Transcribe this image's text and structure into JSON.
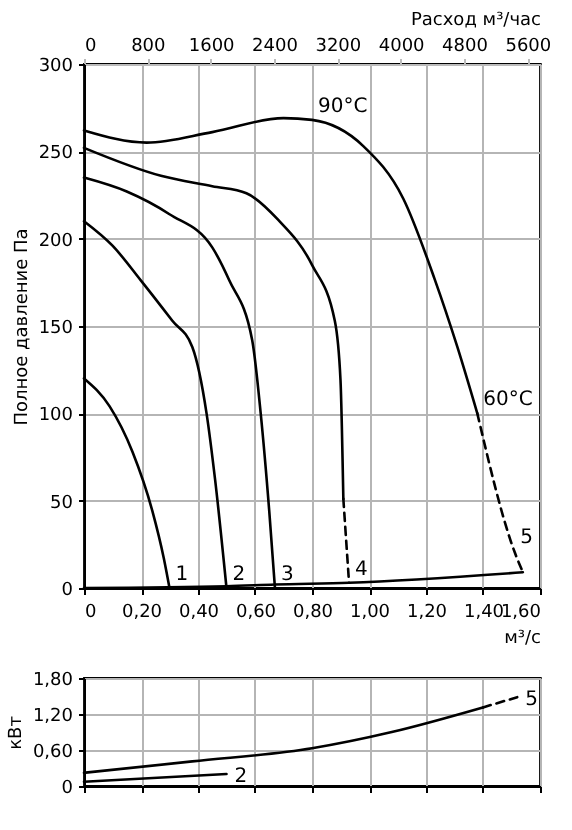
{
  "chart_data": [
    {
      "type": "line",
      "xlabel": "м³/с",
      "ylabel": "Полное давление Па",
      "x2label": "Расход м³/час",
      "xlim": [
        0,
        1.6
      ],
      "ylim": [
        0,
        300
      ],
      "x2lim": [
        0,
        5760
      ],
      "xticks": [
        0,
        {
          "value": 0.2,
          "label": "0,20"
        },
        {
          "value": 0.4,
          "label": "0,40"
        },
        {
          "value": 0.6,
          "label": "0,60"
        },
        {
          "value": 0.8,
          "label": "0,80"
        },
        {
          "value": 1.0,
          "label": "1,00"
        },
        {
          "value": 1.2,
          "label": "1,20"
        },
        {
          "value": 1.4,
          "label": "1,40"
        },
        {
          "value": 1.6,
          "label": "1,60"
        }
      ],
      "yticks": [
        0,
        50,
        100,
        150,
        200,
        250,
        300
      ],
      "x2ticks": [
        0,
        800,
        1600,
        2400,
        3200,
        4000,
        4800,
        5600
      ],
      "grid": true,
      "series": [
        {
          "color": "#000000",
          "line_style": "solid",
          "x": [
            0,
            0.09,
            0.17,
            0.24,
            0.28,
            0.3
          ],
          "values": [
            120,
            104,
            78,
            44,
            17,
            0
          ]
        },
        {
          "color": "#000000",
          "line_style": "solid",
          "x": [
            0,
            0.1,
            0.2,
            0.31,
            0.38,
            0.43,
            0.46,
            0.5
          ],
          "values": [
            210,
            196,
            176,
            153,
            138,
            100,
            62,
            0
          ]
        },
        {
          "color": "#000000",
          "line_style": "solid",
          "x": [
            0,
            0.15,
            0.3,
            0.45,
            0.51,
            0.59,
            0.62,
            0.65,
            0.67
          ],
          "values": [
            235,
            227,
            214,
            195,
            176,
            142,
            100,
            44,
            0
          ]
        },
        {
          "color": "#000000",
          "line_style": "solid",
          "x": [
            0,
            0.27,
            0.45,
            0.57,
            0.68,
            0.8,
            0.88,
            0.9,
            0.91
          ],
          "values": [
            252,
            236,
            230,
            226,
            211,
            185,
            153,
            119,
            51
          ]
        },
        {
          "color": "#000000",
          "line_style": "dashed",
          "x": [
            0.91,
            0.93
          ],
          "values": [
            51,
            3
          ]
        },
        {
          "color": "#000000",
          "line_style": "solid",
          "x": [
            0,
            0.22,
            0.45,
            0.7,
            0.8,
            0.98,
            1.12,
            1.23,
            1.31,
            1.38
          ],
          "values": [
            262,
            255,
            261,
            269,
            268,
            253,
            223,
            177,
            138,
            100
          ]
        },
        {
          "color": "#000000",
          "line_style": "dashed",
          "x": [
            1.38,
            1.51,
            1.54
          ],
          "values": [
            100,
            21,
            9
          ]
        },
        {
          "color": "#000000",
          "line_style": "solid",
          "x": [
            0,
            0.5,
            0.67,
            0.93,
            1.54
          ],
          "values": [
            0,
            1,
            2,
            3,
            9
          ]
        }
      ],
      "annotations": [
        {
          "text": "1",
          "x": 0.3,
          "y": 0
        },
        {
          "text": "2",
          "x": 0.5,
          "y": 0
        },
        {
          "text": "3",
          "x": 0.67,
          "y": 0
        },
        {
          "text": "4",
          "x": 0.93,
          "y": 3
        },
        {
          "text": "5",
          "x": 1.51,
          "y": 21
        },
        {
          "text": "90°C",
          "x": 0.8,
          "y": 268
        },
        {
          "text": "60°C",
          "x": 1.38,
          "y": 100
        }
      ]
    },
    {
      "type": "line",
      "ylabel": "кВт",
      "xlim": [
        0,
        1.6
      ],
      "ylim": [
        0,
        1.8
      ],
      "xticks": [
        0,
        0.2,
        0.4,
        0.6,
        0.8,
        1.0,
        1.2,
        1.4,
        1.6
      ],
      "yticks": [
        0,
        {
          "value": 0.6,
          "label": "0,60"
        },
        {
          "value": 1.2,
          "label": "1,20"
        },
        {
          "value": 1.8,
          "label": "1,80"
        }
      ],
      "grid": true,
      "tick_labels": "y",
      "series": [
        {
          "color": "#000000",
          "line_style": "solid",
          "x": [
            0,
            0.38,
            0.8,
            1.08,
            1.4
          ],
          "values": [
            0.22,
            0.41,
            0.63,
            0.9,
            1.31
          ]
        },
        {
          "color": "#000000",
          "line_style": "dashed",
          "x": [
            1.4,
            1.52
          ],
          "values": [
            1.31,
            1.48
          ]
        },
        {
          "color": "#000000",
          "line_style": "solid",
          "x": [
            0,
            0.5
          ],
          "values": [
            0.07,
            0.2
          ]
        }
      ],
      "annotations": [
        {
          "text": "5",
          "x": 1.52,
          "y": 1.48
        },
        {
          "text": "2",
          "x": 0.5,
          "y": 0.2
        }
      ]
    }
  ]
}
